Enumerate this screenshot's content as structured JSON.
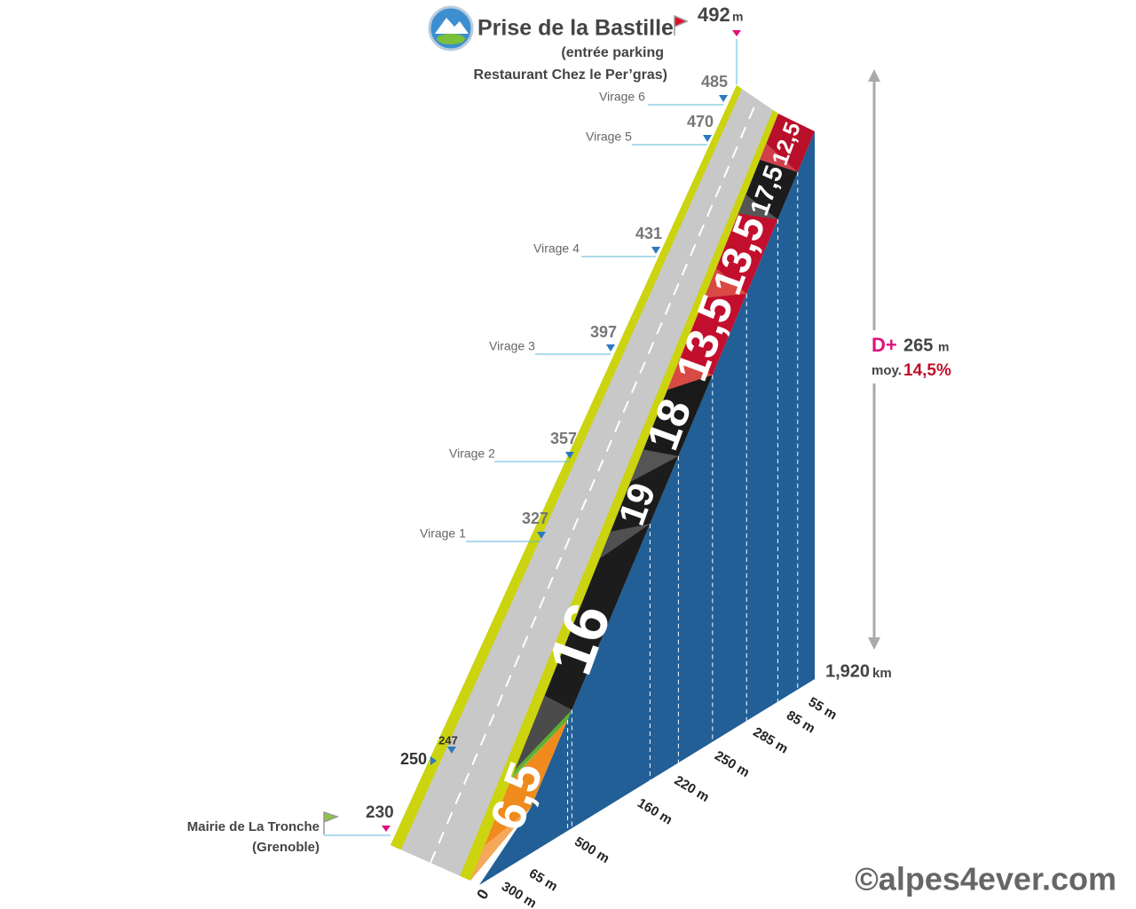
{
  "summit": {
    "name": "Prise de la Bastille",
    "detail_1": "(entrée parking",
    "detail_2": "Restaurant Chez le Per’gras)",
    "altitude": "492",
    "unit": "m"
  },
  "start": {
    "name": "Mairie de La Tronche",
    "detail": "(Grenoble)",
    "altitude": "230"
  },
  "waypoints": [
    {
      "label": "Virage 6",
      "altitude": "485"
    },
    {
      "label": "Virage 5",
      "altitude": "470"
    },
    {
      "label": "Virage 4",
      "altitude": "431"
    },
    {
      "label": "Virage 3",
      "altitude": "397"
    },
    {
      "label": "Virage 2",
      "altitude": "357"
    },
    {
      "label": "Virage 1",
      "altitude": "327"
    },
    {
      "label": null,
      "altitude": "250"
    },
    {
      "label": null,
      "altitude": "247"
    }
  ],
  "totals": {
    "gain_label": "D+",
    "gain": "265",
    "gain_unit": "m",
    "average_label": "moy.",
    "average": "14,5%",
    "distance": "1,920",
    "distance_unit": "km"
  },
  "start_distance": "0",
  "segments": [
    {
      "gradient": "6,5",
      "length": "300 m"
    },
    {
      "gradient": null,
      "length": "65 m"
    },
    {
      "gradient": "16",
      "length": "500 m"
    },
    {
      "gradient": "19",
      "length": "160 m"
    },
    {
      "gradient": "18",
      "length": "220 m"
    },
    {
      "gradient": "13,5",
      "length": "250 m"
    },
    {
      "gradient": "13,5",
      "length": "285 m"
    },
    {
      "gradient": "17,5",
      "length": "85 m"
    },
    {
      "gradient": "12,5",
      "length": "55 m"
    }
  ],
  "copyright": "©alpes4ever.com"
}
